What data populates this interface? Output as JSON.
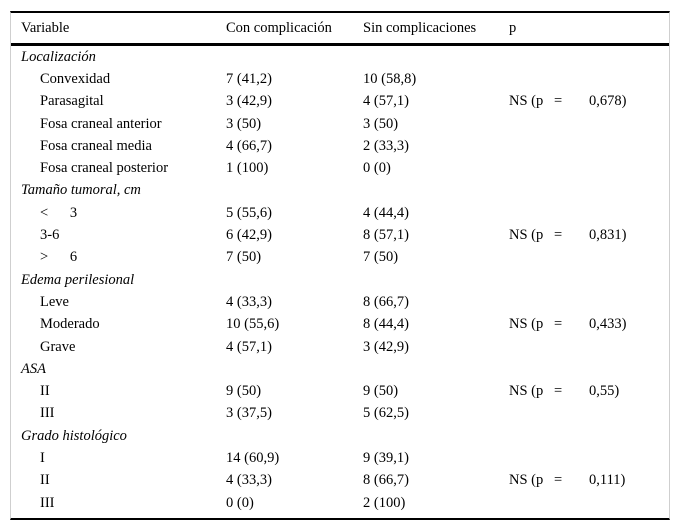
{
  "table": {
    "headers": {
      "variable": "Variable",
      "con": "Con complicación",
      "sin": "Sin complicaciones",
      "p": "p"
    },
    "rows": [
      {
        "type": "category",
        "label": "Localización"
      },
      {
        "type": "item",
        "label": "Convexidad",
        "con": "7 (41,2)",
        "sin": "10 (58,8)"
      },
      {
        "type": "item",
        "label": "Parasagital",
        "con": "3 (42,9)",
        "sin": "4 (57,1)",
        "p_ns": "NS (p",
        "p_eq": "=",
        "p_val": "0,678)"
      },
      {
        "type": "item",
        "label": "Fosa craneal anterior",
        "con": "3 (50)",
        "sin": "3 (50)"
      },
      {
        "type": "item",
        "label": "Fosa craneal media",
        "con": "4 (66,7)",
        "sin": "2 (33,3)"
      },
      {
        "type": "item",
        "label": "Fosa craneal posterior",
        "con": "1 (100)",
        "sin": "0 (0)"
      },
      {
        "type": "category",
        "label": "Tamaño tumoral, cm"
      },
      {
        "type": "item",
        "label": "<      3",
        "con": "5 (55,6)",
        "sin": "4 (44,4)"
      },
      {
        "type": "item",
        "label": "3-6",
        "con": "6 (42,9)",
        "sin": "8 (57,1)",
        "p_ns": "NS (p",
        "p_eq": "=",
        "p_val": "0,831)"
      },
      {
        "type": "item",
        "label": ">      6",
        "con": "7 (50)",
        "sin": "7 (50)"
      },
      {
        "type": "category",
        "label": "Edema perilesional"
      },
      {
        "type": "item",
        "label": "Leve",
        "con": "4 (33,3)",
        "sin": "8 (66,7)"
      },
      {
        "type": "item",
        "label": "Moderado",
        "con": "10 (55,6)",
        "sin": "8 (44,4)",
        "p_ns": "NS (p",
        "p_eq": "=",
        "p_val": "0,433)"
      },
      {
        "type": "item",
        "label": "Grave",
        "con": "4 (57,1)",
        "sin": "3 (42,9)"
      },
      {
        "type": "category",
        "label": "ASA"
      },
      {
        "type": "item",
        "label": "II",
        "con": "9 (50)",
        "sin": "9 (50)",
        "p_ns": "NS (p",
        "p_eq": "=",
        "p_val": "0,55)"
      },
      {
        "type": "item",
        "label": "III",
        "con": "3 (37,5)",
        "sin": "5 (62,5)"
      },
      {
        "type": "category",
        "label": "Grado histológico"
      },
      {
        "type": "item",
        "label": "I",
        "con": "14 (60,9)",
        "sin": "9 (39,1)"
      },
      {
        "type": "item",
        "label": "II",
        "con": "4 (33,3)",
        "sin": "8 (66,7)",
        "p_ns": "NS (p",
        "p_eq": "=",
        "p_val": "0,111)"
      },
      {
        "type": "item",
        "label": "III",
        "con": "0 (0)",
        "sin": "2 (100)"
      }
    ]
  }
}
